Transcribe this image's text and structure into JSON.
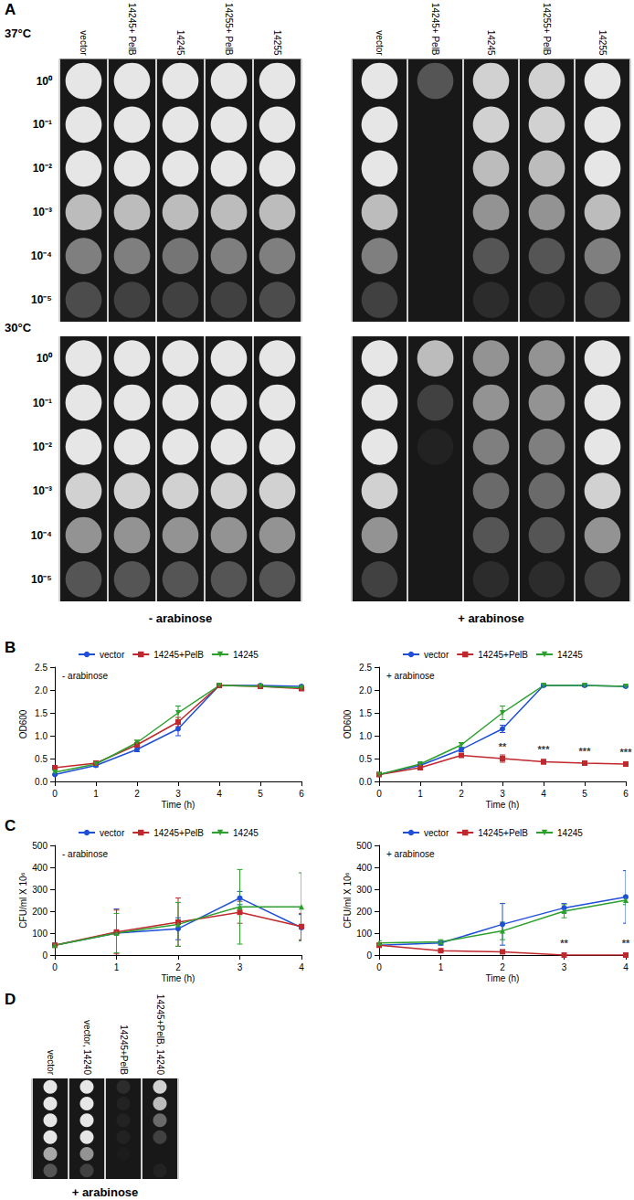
{
  "chart_data": [
    {
      "type": "spot_assay",
      "panel": "A",
      "title": "37°C",
      "columns": [
        "vector",
        "14245+ PelB",
        "14245",
        "14255+ PelB",
        "14255"
      ],
      "rows": [
        "10⁰",
        "10⁻¹",
        "10⁻²",
        "10⁻³",
        "10⁻⁴",
        "10⁻⁵"
      ],
      "growth": [
        [
          1,
          1,
          1,
          0.8,
          0.5,
          0.25
        ],
        [
          1,
          1,
          1,
          0.8,
          0.5,
          0.2
        ],
        [
          1,
          1,
          1,
          0.8,
          0.45,
          0.2
        ],
        [
          1,
          1,
          1,
          0.8,
          0.5,
          0.2
        ],
        [
          1,
          1,
          1,
          0.8,
          0.5,
          0.25
        ]
      ]
    },
    {
      "type": "spot_assay",
      "columns": [
        "vector",
        "14245+ PelB",
        "14245",
        "14255+ PelB",
        "14255"
      ],
      "growth": [
        [
          1,
          1,
          1,
          0.8,
          0.5,
          0.2
        ],
        [
          0.3,
          0,
          0,
          0,
          0,
          0
        ],
        [
          0.9,
          0.9,
          0.8,
          0.6,
          0.3,
          0.1
        ],
        [
          0.9,
          0.9,
          0.8,
          0.6,
          0.3,
          0.1
        ],
        [
          1,
          1,
          1,
          0.8,
          0.5,
          0.2
        ]
      ]
    },
    {
      "type": "spot_assay",
      "title": "30°C",
      "caption": "- arabinose",
      "rows": [
        "10⁰",
        "10⁻¹",
        "10⁻²",
        "10⁻³",
        "10⁻⁴",
        "10⁻⁵"
      ],
      "growth": [
        [
          1,
          1,
          1,
          0.9,
          0.6,
          0.3
        ],
        [
          1,
          1,
          1,
          0.9,
          0.6,
          0.3
        ],
        [
          1,
          1,
          1,
          0.9,
          0.6,
          0.3
        ],
        [
          1,
          1,
          1,
          0.9,
          0.6,
          0.3
        ],
        [
          1,
          1,
          1,
          0.9,
          0.6,
          0.3
        ]
      ]
    },
    {
      "type": "spot_assay",
      "caption": "+ arabinose",
      "growth": [
        [
          1,
          1,
          1,
          0.9,
          0.6,
          0.2
        ],
        [
          0.8,
          0.2,
          0.05,
          0,
          0,
          0
        ],
        [
          0.6,
          0.6,
          0.5,
          0.4,
          0.3,
          0.1
        ],
        [
          0.6,
          0.6,
          0.5,
          0.4,
          0.3,
          0.1
        ],
        [
          1,
          1,
          1,
          0.9,
          0.6,
          0.2
        ]
      ]
    },
    {
      "type": "line",
      "panel": "B",
      "subtitle": "- arabinose",
      "x_label": "Time (h)",
      "y_label": "OD600",
      "x": [
        0,
        1,
        2,
        3,
        4,
        5,
        6
      ],
      "xlim": [
        0,
        6
      ],
      "xticks": [
        0,
        1,
        2,
        3,
        4,
        5,
        6
      ],
      "ylim": [
        0,
        2.5
      ],
      "yticks": [
        {
          "value": 0,
          "label": "0.0"
        },
        {
          "value": 0.5,
          "label": "0.5"
        },
        {
          "value": 1,
          "label": "1.0"
        },
        {
          "value": 1.5,
          "label": "1.5"
        },
        {
          "value": 2,
          "label": "2.0"
        },
        {
          "value": 2.5,
          "label": "2.5"
        }
      ],
      "grid": false,
      "legend": "top",
      "series": [
        {
          "name": "vector",
          "color": "#1f4fd8",
          "marker": "circle",
          "values": [
            0.15,
            0.35,
            0.7,
            1.15,
            2.1,
            2.1,
            2.08
          ],
          "errors": [
            0.02,
            0.03,
            0.05,
            0.15,
            0.02,
            0.02,
            0.03
          ]
        },
        {
          "name": "14245+PelB",
          "color": "#c0282d",
          "marker": "square",
          "values": [
            0.3,
            0.4,
            0.8,
            1.3,
            2.1,
            2.08,
            2.03
          ],
          "errors": [
            0.02,
            0.03,
            0.05,
            0.1,
            0.02,
            0.02,
            0.03
          ]
        },
        {
          "name": "14245",
          "color": "#2ca02c",
          "marker": "triangle_down",
          "values": [
            0.2,
            0.38,
            0.85,
            1.5,
            2.1,
            2.08,
            2.05
          ],
          "errors": [
            0.02,
            0.03,
            0.05,
            0.15,
            0.02,
            0.02,
            0.03
          ]
        }
      ]
    },
    {
      "type": "line",
      "subtitle": "+ arabinose",
      "x_label": "Time (h)",
      "y_label": "OD600",
      "x": [
        0,
        1,
        2,
        3,
        4,
        5,
        6
      ],
      "xlim": [
        0,
        6
      ],
      "xticks": [
        0,
        1,
        2,
        3,
        4,
        5,
        6
      ],
      "ylim": [
        0,
        2.5
      ],
      "yticks": [
        {
          "value": 0,
          "label": "0.0"
        },
        {
          "value": 0.5,
          "label": "0.5"
        },
        {
          "value": 1,
          "label": "1.0"
        },
        {
          "value": 1.5,
          "label": "1.5"
        },
        {
          "value": 2,
          "label": "2.0"
        },
        {
          "value": 2.5,
          "label": "2.5"
        }
      ],
      "grid": false,
      "legend": "top",
      "series": [
        {
          "name": "vector",
          "color": "#1f4fd8",
          "marker": "circle",
          "values": [
            0.15,
            0.35,
            0.7,
            1.15,
            2.1,
            2.1,
            2.08
          ],
          "errors": [
            0.02,
            0.03,
            0.05,
            0.08,
            0.02,
            0.02,
            0.02
          ]
        },
        {
          "name": "14245+PelB",
          "color": "#c0282d",
          "marker": "square",
          "values": [
            0.15,
            0.3,
            0.57,
            0.5,
            0.43,
            0.4,
            0.38
          ],
          "errors": [
            0.02,
            0.03,
            0.03,
            0.08,
            0.05,
            0.03,
            0.03
          ]
        },
        {
          "name": "14245",
          "color": "#2ca02c",
          "marker": "triangle_down",
          "values": [
            0.15,
            0.38,
            0.8,
            1.5,
            2.1,
            2.1,
            2.08
          ],
          "errors": [
            0.02,
            0.03,
            0.05,
            0.15,
            0.02,
            0.02,
            0.02
          ]
        }
      ],
      "annotations": [
        {
          "x": 3,
          "y": 0.5,
          "text": "**"
        },
        {
          "x": 4,
          "y": 0.43,
          "text": "***"
        },
        {
          "x": 5,
          "y": 0.4,
          "text": "***"
        },
        {
          "x": 6,
          "y": 0.38,
          "text": "***"
        }
      ]
    },
    {
      "type": "line",
      "panel": "C",
      "subtitle": "- arabinose",
      "x_label": "Time (h)",
      "y_label": "CFU/ml X 10⁶",
      "x": [
        0,
        1,
        2,
        3,
        4
      ],
      "xlim": [
        0,
        4
      ],
      "xticks": [
        0,
        1,
        2,
        3,
        4
      ],
      "ylim": [
        0,
        500
      ],
      "yticks": [
        0,
        100,
        200,
        300,
        400,
        500
      ],
      "grid": false,
      "legend": "top",
      "series": [
        {
          "name": "vector",
          "color": "#1f4fd8",
          "marker": "circle",
          "values": [
            45,
            100,
            120,
            260,
            125
          ],
          "errors": [
            5,
            110,
            50,
            30,
            60
          ]
        },
        {
          "name": "14245+PelB",
          "color": "#c0282d",
          "marker": "square",
          "values": [
            45,
            105,
            150,
            195,
            130
          ],
          "errors": [
            5,
            100,
            110,
            50,
            60
          ]
        },
        {
          "name": "14245",
          "color": "#2ca02c",
          "marker": "triangle",
          "values": [
            45,
            100,
            140,
            220,
            220
          ],
          "errors": [
            5,
            90,
            100,
            170,
            155
          ]
        }
      ]
    },
    {
      "type": "line",
      "subtitle": "+ arabinose",
      "x_label": "Time (h)",
      "y_label": "CFU/ml X 10⁶",
      "x": [
        0,
        1,
        2,
        3,
        4
      ],
      "xlim": [
        0,
        4
      ],
      "xticks": [
        0,
        1,
        2,
        3,
        4
      ],
      "ylim": [
        0,
        500
      ],
      "yticks": [
        0,
        100,
        200,
        300,
        400,
        500
      ],
      "grid": false,
      "legend": "top",
      "series": [
        {
          "name": "vector",
          "color": "#1f4fd8",
          "marker": "circle",
          "values": [
            45,
            55,
            140,
            215,
            265
          ],
          "errors": [
            10,
            10,
            95,
            20,
            120
          ]
        },
        {
          "name": "14245+PelB",
          "color": "#c0282d",
          "marker": "square",
          "values": [
            45,
            20,
            15,
            0,
            0
          ],
          "errors": [
            5,
            5,
            5,
            1,
            1
          ]
        },
        {
          "name": "14245",
          "color": "#2ca02c",
          "marker": "triangle",
          "values": [
            55,
            60,
            110,
            200,
            250
          ],
          "errors": [
            10,
            10,
            40,
            30,
            20
          ]
        }
      ],
      "annotations": [
        {
          "x": 3,
          "y": 0,
          "text": "**"
        },
        {
          "x": 4,
          "y": 0,
          "text": "**"
        }
      ]
    },
    {
      "type": "spot_assay",
      "panel": "D",
      "caption": "+ arabinose",
      "columns": [
        "vector",
        "vector, 14240",
        "14245+PelB",
        "14245+PelB, 14240"
      ],
      "growth": [
        [
          1,
          1,
          1,
          1,
          0.7,
          0.3
        ],
        [
          1,
          1,
          1,
          1,
          0.6,
          0.2
        ],
        [
          0.1,
          0.05,
          0.05,
          0.05,
          0.02,
          0
        ],
        [
          0.9,
          0.8,
          0.4,
          0.2,
          0,
          0.05
        ]
      ]
    }
  ]
}
